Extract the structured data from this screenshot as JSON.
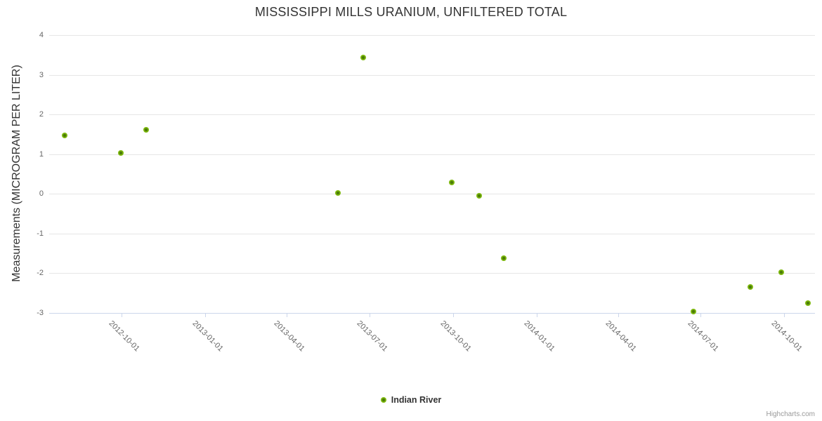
{
  "chart_data": {
    "type": "scatter",
    "title": "MISSISSIPPI MILLS URANIUM, UNFILTERED TOTAL",
    "xlabel": "",
    "ylabel": "Measurements (MICROGRAM PER LITER)",
    "ylim": [
      -3,
      4
    ],
    "y_ticks": [
      4,
      3,
      2,
      1,
      0,
      -1,
      -2,
      -3
    ],
    "x_ticks": [
      "2012-10-01",
      "2013-01-01",
      "2013-04-01",
      "2013-07-01",
      "2013-10-01",
      "2014-01-01",
      "2014-04-01",
      "2014-07-01",
      "2014-10-01"
    ],
    "x_range": [
      "2012-07-13",
      "2014-11-04"
    ],
    "grid": "horizontal-only",
    "legend_position": "bottom-center",
    "series": [
      {
        "name": "Indian River",
        "color": "#7db80e",
        "marker_core_color": "#4b7c07",
        "points": [
          {
            "x": "2012-07-30",
            "y": 1.48
          },
          {
            "x": "2012-09-30",
            "y": 1.03
          },
          {
            "x": "2012-10-28",
            "y": 1.61
          },
          {
            "x": "2013-05-27",
            "y": 0.03
          },
          {
            "x": "2013-06-24",
            "y": 3.44
          },
          {
            "x": "2013-09-30",
            "y": 0.28
          },
          {
            "x": "2013-10-30",
            "y": -0.04
          },
          {
            "x": "2013-11-26",
            "y": -1.62
          },
          {
            "x": "2014-06-23",
            "y": -2.97
          },
          {
            "x": "2014-08-25",
            "y": -2.34
          },
          {
            "x": "2014-09-28",
            "y": -1.98
          },
          {
            "x": "2014-10-27",
            "y": -2.75
          }
        ]
      }
    ],
    "credit": "Highcharts.com"
  },
  "colors": {
    "title_text": "#333333",
    "axis_label_text": "#666666",
    "gridline": "#e6e6e6",
    "axis_line": "#ccd6eb"
  }
}
